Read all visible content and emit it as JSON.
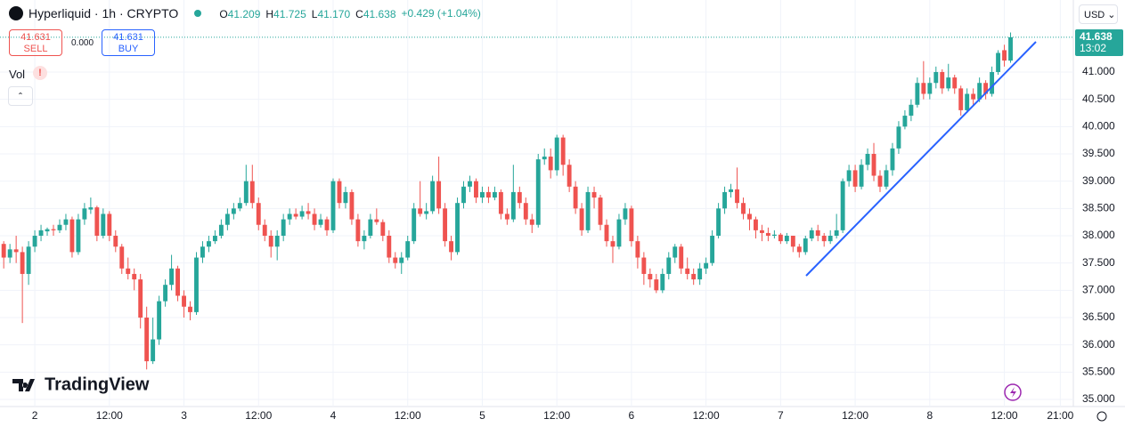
{
  "header": {
    "symbol": "Hyperliquid · 1h · CRYPTO",
    "ohlc": [
      {
        "key": "O",
        "value": "41.209"
      },
      {
        "key": "H",
        "value": "41.725"
      },
      {
        "key": "L",
        "value": "41.170"
      },
      {
        "key": "C",
        "value": "41.638"
      }
    ],
    "change": "+0.429 (+1.04%)"
  },
  "trade": {
    "sell_price": "41.631",
    "sell": "SELL",
    "spread": "0.000",
    "buy_price": "41.631",
    "buy": "BUY"
  },
  "indicator": "Vol",
  "currency": "USD",
  "logo": "TradingView",
  "price_tag": {
    "price": "41.638",
    "countdown": "13:02"
  },
  "chart_data": {
    "type": "candlestick",
    "up_color": "#26a69a",
    "down_color": "#ef5350",
    "grid": true,
    "xlim": [
      -0.6,
      172.1
    ],
    "xticks": [
      {
        "value": 5,
        "label": "2"
      },
      {
        "value": 17,
        "label": "12:00"
      },
      {
        "value": 29,
        "label": "3"
      },
      {
        "value": 41,
        "label": "12:00"
      },
      {
        "value": 53,
        "label": "4"
      },
      {
        "value": 65,
        "label": "12:00"
      },
      {
        "value": 77,
        "label": "5"
      },
      {
        "value": 89,
        "label": "12:00"
      },
      {
        "value": 101,
        "label": "6"
      },
      {
        "value": 113,
        "label": "12:00"
      },
      {
        "value": 125,
        "label": "7"
      },
      {
        "value": 137,
        "label": "12:00"
      },
      {
        "value": 149,
        "label": "8"
      },
      {
        "value": 161,
        "label": "12:00"
      },
      {
        "value": 170,
        "label": "21:00"
      }
    ],
    "ylim": [
      34.87,
      42.32
    ],
    "yticks": [
      {
        "value": 35,
        "label": "35.000"
      },
      {
        "value": 35.5,
        "label": "35.500"
      },
      {
        "value": 36,
        "label": "36.000"
      },
      {
        "value": 36.5,
        "label": "36.500"
      },
      {
        "value": 37,
        "label": "37.000"
      },
      {
        "value": 37.5,
        "label": "37.500"
      },
      {
        "value": 38,
        "label": "38.000"
      },
      {
        "value": 38.5,
        "label": "38.500"
      },
      {
        "value": 39,
        "label": "39.000"
      },
      {
        "value": 39.5,
        "label": "39.500"
      },
      {
        "value": 40,
        "label": "40.000"
      },
      {
        "value": 40.5,
        "label": "40.500"
      },
      {
        "value": 41,
        "label": "41.000"
      }
    ],
    "open": [
      37.85,
      37.6,
      37.75,
      37.7,
      37.3,
      37.8,
      38.0,
      38.08,
      38.12,
      38.1,
      38.2,
      38.3,
      37.7,
      38.3,
      38.48,
      38.52,
      38.0,
      38.4,
      38.0,
      37.8,
      37.4,
      37.3,
      37.2,
      36.5,
      35.7,
      36.1,
      36.8,
      37.1,
      37.4,
      36.9,
      36.7,
      36.6,
      37.6,
      37.8,
      37.9,
      38.0,
      38.2,
      38.4,
      38.5,
      38.6,
      39.0,
      38.6,
      38.2,
      38.0,
      37.8,
      38.0,
      38.3,
      38.4,
      38.35,
      38.45,
      38.4,
      38.2,
      38.3,
      38.1,
      39.0,
      38.6,
      38.8,
      38.3,
      37.9,
      38.0,
      38.3,
      38.25,
      38.0,
      37.6,
      37.5,
      37.6,
      37.9,
      38.5,
      38.4,
      38.45,
      39.0,
      38.5,
      37.9,
      37.7,
      38.6,
      38.9,
      39.0,
      38.7,
      38.8,
      38.7,
      38.8,
      38.4,
      38.3,
      38.8,
      38.6,
      38.3,
      38.2,
      39.4,
      39.45,
      39.2,
      39.8,
      39.3,
      38.9,
      38.5,
      38.1,
      38.8,
      38.7,
      38.2,
      37.9,
      37.8,
      38.3,
      38.5,
      37.9,
      37.6,
      37.3,
      37.2,
      37.0,
      37.3,
      37.6,
      37.8,
      37.4,
      37.3,
      37.2,
      37.4,
      37.5,
      38.0,
      38.5,
      38.8,
      38.85,
      38.6,
      38.4,
      38.3,
      38.1,
      38.05,
      38.0,
      38.02,
      37.9,
      38.0,
      37.8,
      37.7,
      37.95,
      38.1,
      38.0,
      37.9,
      38.0,
      38.1,
      39.0,
      39.2,
      38.9,
      39.3,
      39.5,
      39.1,
      38.9,
      39.2,
      39.6,
      40.0,
      40.2,
      40.4,
      40.8,
      40.6,
      40.8,
      41.0,
      40.7,
      40.9,
      40.7,
      40.3,
      40.6,
      40.5,
      40.8,
      40.6,
      41.0,
      41.4,
      41.209
    ],
    "high": [
      37.9,
      37.85,
      38.0,
      37.8,
      37.9,
      38.1,
      38.2,
      38.15,
      38.2,
      38.3,
      38.4,
      38.35,
      38.4,
      38.6,
      38.7,
      38.55,
      38.5,
      38.45,
      38.1,
      37.85,
      37.6,
      37.4,
      37.3,
      36.7,
      36.5,
      36.9,
      37.2,
      37.65,
      37.45,
      37.0,
      36.8,
      37.7,
      37.9,
      38.0,
      38.1,
      38.3,
      38.5,
      38.6,
      38.7,
      39.3,
      39.3,
      38.7,
      38.3,
      38.1,
      38.1,
      38.4,
      38.5,
      38.5,
      38.55,
      38.6,
      38.5,
      38.4,
      38.35,
      39.05,
      39.05,
      38.9,
      38.85,
      38.4,
      38.1,
      38.4,
      38.5,
      38.3,
      38.1,
      37.7,
      37.7,
      38.0,
      38.6,
      39.0,
      38.6,
      39.1,
      39.45,
      38.6,
      38.0,
      38.7,
      39.0,
      39.1,
      39.05,
      38.9,
      38.9,
      38.9,
      38.85,
      38.5,
      39.3,
      38.9,
      38.7,
      38.4,
      39.5,
      39.6,
      39.6,
      39.85,
      39.85,
      39.4,
      39.0,
      38.6,
      38.9,
      38.9,
      38.75,
      38.3,
      38.0,
      38.4,
      38.6,
      38.55,
      38.0,
      37.7,
      37.4,
      37.3,
      37.4,
      37.7,
      37.85,
      37.85,
      37.6,
      37.4,
      37.5,
      37.6,
      38.1,
      38.6,
      38.9,
      38.95,
      39.25,
      38.7,
      38.5,
      38.35,
      38.2,
      38.15,
      38.1,
      38.05,
      38.05,
      38.0,
      37.85,
      38.0,
      38.15,
      38.2,
      38.05,
      38.1,
      38.4,
      39.05,
      39.3,
      39.3,
      39.4,
      39.6,
      39.7,
      39.2,
      39.3,
      39.7,
      40.1,
      40.3,
      40.5,
      40.9,
      41.2,
      40.9,
      41.1,
      41.05,
      41.15,
      40.95,
      40.75,
      40.7,
      40.7,
      40.9,
      40.85,
      41.1,
      41.4,
      41.5,
      41.725
    ],
    "low": [
      37.4,
      37.5,
      37.5,
      36.4,
      37.1,
      37.7,
      37.9,
      38.0,
      38.0,
      38.05,
      38.1,
      37.6,
      37.65,
      38.2,
      38.4,
      37.9,
      37.95,
      37.9,
      37.7,
      37.3,
      37.2,
      37.0,
      36.3,
      35.55,
      35.65,
      36.0,
      36.7,
      37.0,
      36.8,
      36.5,
      36.45,
      36.55,
      37.5,
      37.7,
      37.85,
      37.95,
      38.1,
      38.3,
      38.45,
      38.55,
      38.5,
      38.1,
      37.9,
      37.6,
      37.55,
      37.9,
      38.2,
      38.3,
      38.3,
      38.3,
      38.1,
      38.15,
      38.0,
      38.05,
      38.5,
      38.5,
      38.2,
      37.8,
      37.75,
      37.95,
      38.2,
      37.9,
      37.5,
      37.4,
      37.3,
      37.55,
      37.85,
      38.35,
      38.3,
      38.4,
      38.4,
      37.8,
      37.55,
      37.65,
      38.5,
      38.8,
      38.6,
      38.6,
      38.6,
      38.65,
      38.3,
      38.2,
      38.25,
      38.5,
      38.2,
      38.05,
      38.15,
      39.3,
      39.05,
      39.1,
      39.1,
      38.8,
      38.4,
      38.0,
      38.05,
      38.5,
      38.1,
      37.8,
      37.5,
      37.75,
      38.2,
      37.8,
      37.4,
      37.1,
      37.05,
      36.95,
      36.95,
      37.2,
      37.5,
      37.3,
      37.2,
      37.1,
      37.1,
      37.3,
      37.45,
      37.95,
      38.4,
      38.7,
      38.5,
      38.3,
      38.1,
      37.95,
      37.9,
      37.9,
      37.95,
      37.85,
      37.85,
      37.7,
      37.6,
      37.65,
      37.9,
      37.9,
      37.8,
      37.85,
      37.95,
      38.05,
      38.9,
      38.8,
      38.85,
      39.2,
      39.0,
      38.8,
      38.85,
      39.1,
      39.5,
      39.95,
      40.1,
      40.35,
      40.5,
      40.5,
      40.7,
      40.6,
      40.65,
      40.6,
      40.2,
      40.25,
      40.4,
      40.45,
      40.5,
      40.55,
      40.95,
      41.1,
      41.17
    ],
    "close": [
      37.6,
      37.75,
      37.7,
      37.3,
      37.8,
      38.0,
      38.1,
      38.12,
      38.1,
      38.2,
      38.3,
      37.7,
      38.3,
      38.5,
      38.52,
      38.0,
      38.4,
      38.0,
      37.8,
      37.4,
      37.3,
      37.2,
      36.5,
      35.7,
      36.1,
      36.8,
      37.1,
      37.4,
      36.9,
      36.7,
      36.6,
      37.6,
      37.8,
      37.9,
      38.0,
      38.2,
      38.4,
      38.5,
      38.6,
      39.0,
      38.6,
      38.2,
      38.0,
      37.8,
      38.0,
      38.3,
      38.4,
      38.35,
      38.45,
      38.4,
      38.2,
      38.3,
      38.1,
      39.0,
      38.6,
      38.8,
      38.3,
      37.9,
      38.0,
      38.3,
      38.25,
      38.0,
      37.6,
      37.5,
      37.6,
      37.9,
      38.5,
      38.4,
      38.45,
      39.0,
      38.5,
      37.9,
      37.7,
      38.6,
      38.9,
      39.0,
      38.7,
      38.8,
      38.7,
      38.8,
      38.4,
      38.3,
      38.8,
      38.6,
      38.3,
      38.2,
      39.4,
      39.45,
      39.2,
      39.8,
      39.3,
      38.9,
      38.5,
      38.1,
      38.8,
      38.7,
      38.2,
      37.9,
      37.8,
      38.3,
      38.5,
      37.9,
      37.6,
      37.3,
      37.2,
      37.0,
      37.3,
      37.6,
      37.8,
      37.4,
      37.3,
      37.2,
      37.4,
      37.5,
      38.0,
      38.5,
      38.8,
      38.85,
      38.6,
      38.4,
      38.3,
      38.1,
      38.05,
      38.0,
      38.02,
      37.9,
      38.0,
      37.8,
      37.7,
      37.95,
      38.1,
      38.0,
      37.9,
      38.0,
      38.1,
      39.0,
      39.2,
      38.9,
      39.3,
      39.5,
      39.1,
      38.9,
      39.2,
      39.6,
      40.0,
      40.2,
      40.4,
      40.8,
      40.6,
      40.8,
      41.0,
      40.7,
      40.9,
      40.7,
      40.3,
      40.6,
      40.5,
      40.8,
      40.6,
      41.0,
      41.35,
      41.21,
      41.638
    ]
  }
}
